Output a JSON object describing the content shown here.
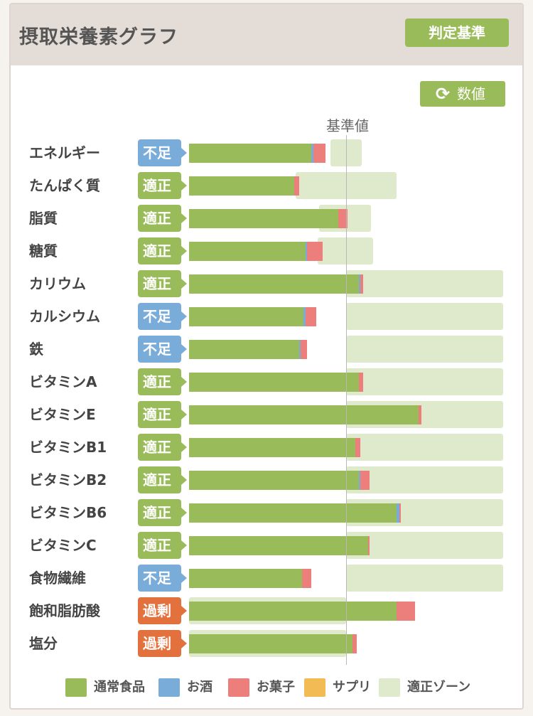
{
  "title": "摂取栄養素グラフ",
  "criteria_button": "判定基準",
  "toggle_button": {
    "icon": "refresh-icon",
    "label": "数値"
  },
  "base_label": "基準値",
  "colors": {
    "food": "#9abb59",
    "alcohol": "#79acd9",
    "sweets": "#ec7f7c",
    "supplement": "#f2bb54",
    "zone": "#dfe9cc"
  },
  "legend": [
    "通常食品",
    "お酒",
    "お菓子",
    "サプリ",
    "適正ゾーン"
  ],
  "chart_data": {
    "type": "bar",
    "stacked": true,
    "unit": "% of standard",
    "reference": 100,
    "categories": [
      "エネルギー",
      "たんぱく質",
      "脂質",
      "糖質",
      "カリウム",
      "カルシウム",
      "鉄",
      "ビタミンA",
      "ビタミンE",
      "ビタミンB1",
      "ビタミンB2",
      "ビタミンB6",
      "ビタミンC",
      "食物繊維",
      "飽和脂肪酸",
      "塩分"
    ],
    "status": [
      "不足",
      "適正",
      "適正",
      "適正",
      "適正",
      "不足",
      "不足",
      "適正",
      "適正",
      "適正",
      "適正",
      "適正",
      "適正",
      "不足",
      "過剰",
      "過剰"
    ],
    "series": [
      {
        "name": "通常食品",
        "values": [
          78,
          67,
          95,
          74,
          108,
          73,
          70,
          108,
          146,
          106,
          108,
          132,
          114,
          72,
          132,
          104
        ]
      },
      {
        "name": "お酒",
        "values": [
          1,
          0,
          0,
          1,
          1,
          1,
          1,
          0,
          0,
          0,
          1,
          2,
          0,
          0,
          0,
          0
        ]
      },
      {
        "name": "お菓子",
        "values": [
          8,
          3,
          6,
          10,
          2,
          7,
          4,
          3,
          2,
          3,
          6,
          1,
          1,
          6,
          12,
          3
        ]
      },
      {
        "name": "サプリ",
        "values": [
          0,
          0,
          0,
          0,
          0,
          0,
          0,
          0,
          0,
          0,
          0,
          0,
          0,
          0,
          0,
          0
        ]
      }
    ],
    "zones": [
      [
        90,
        110
      ],
      [
        68,
        132
      ],
      [
        83,
        116
      ],
      [
        82,
        117
      ],
      [
        100,
        200
      ],
      [
        100,
        200
      ],
      [
        100,
        200
      ],
      [
        100,
        200
      ],
      [
        100,
        200
      ],
      [
        100,
        200
      ],
      [
        100,
        200
      ],
      [
        100,
        200
      ],
      [
        100,
        200
      ],
      [
        100,
        200
      ],
      [
        0,
        100
      ],
      [
        0,
        100
      ]
    ]
  }
}
